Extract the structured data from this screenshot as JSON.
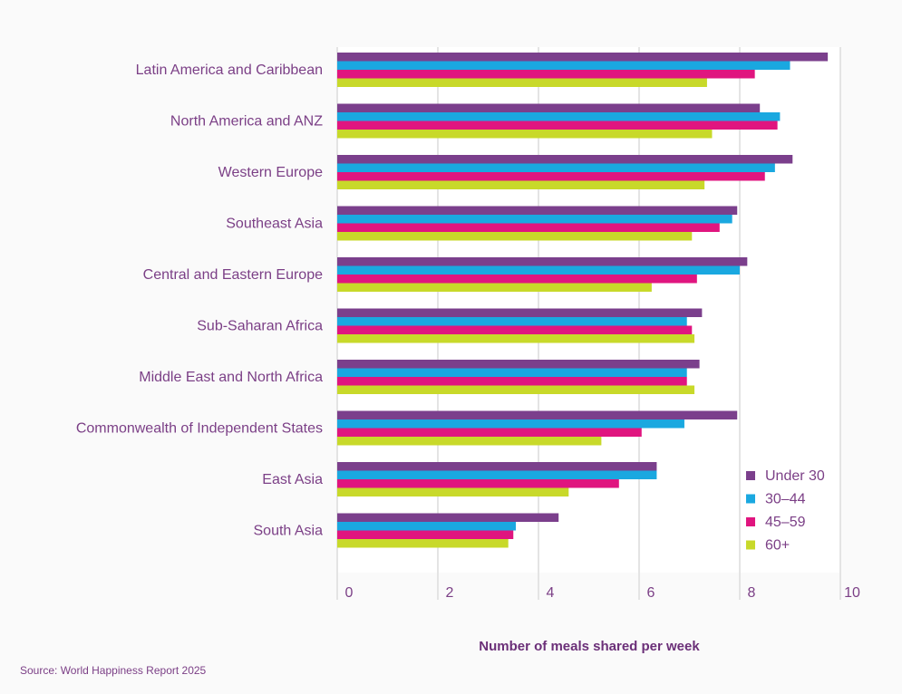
{
  "chart_data": {
    "type": "bar",
    "orientation": "horizontal",
    "categories": [
      "Latin America and Caribbean",
      "North America and ANZ",
      "Western Europe",
      "Southeast Asia",
      "Central and Eastern Europe",
      "Sub-Saharan Africa",
      "Middle East and North Africa",
      "Commonwealth of Independent States",
      "East Asia",
      "South Asia"
    ],
    "series": [
      {
        "name": "Under 30",
        "color": "#7b3f8c",
        "values": [
          9.75,
          8.4,
          9.05,
          7.95,
          8.15,
          7.25,
          7.2,
          7.95,
          6.35,
          4.4
        ]
      },
      {
        "name": "30–44",
        "color": "#1aa8e0",
        "values": [
          9.0,
          8.8,
          8.7,
          7.85,
          8.0,
          6.95,
          6.95,
          6.9,
          6.35,
          3.55
        ]
      },
      {
        "name": "45–59",
        "color": "#e0157f",
        "values": [
          8.3,
          8.75,
          8.5,
          7.6,
          7.15,
          7.05,
          6.95,
          6.05,
          5.6,
          3.5
        ]
      },
      {
        "name": "60+",
        "color": "#c8d92a",
        "values": [
          7.35,
          7.45,
          7.3,
          7.05,
          6.25,
          7.1,
          7.1,
          5.25,
          4.6,
          3.4
        ]
      }
    ],
    "x_ticks": [
      "0",
      "2",
      "4",
      "6",
      "8",
      "10"
    ],
    "xlim": [
      0,
      10
    ],
    "xlabel": "Number of meals shared per week",
    "ylabel": "",
    "title": "",
    "grid": true,
    "legend_position": "bottom-right"
  },
  "source_note": "Source: World Happiness Report 2025"
}
